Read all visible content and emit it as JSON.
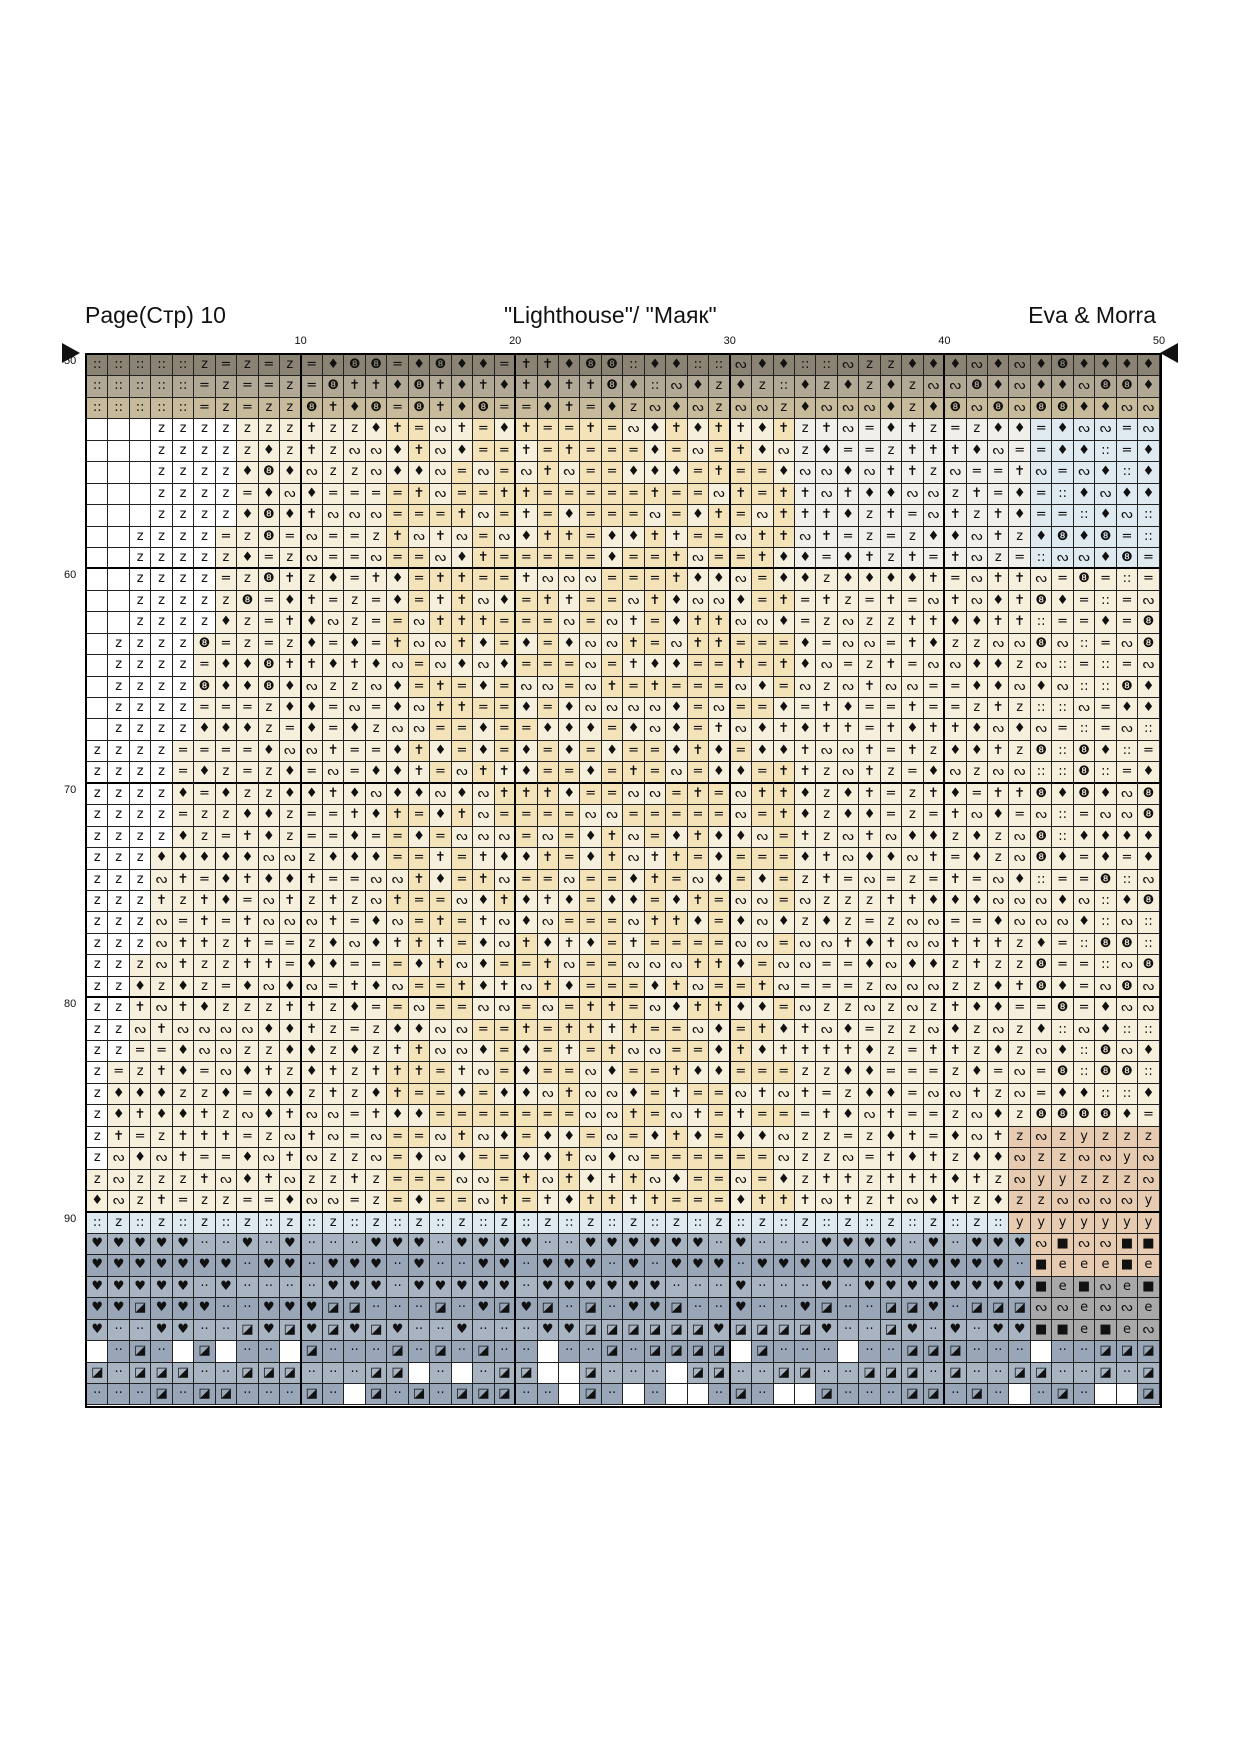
{
  "header": {
    "left": "Page(Стр) 10",
    "center": "\"Lighthouse\"/ \"Маяк\"",
    "right": "Eva & Morra"
  },
  "grid": {
    "columns": 50,
    "rows": 49,
    "start_row": 50,
    "col_labels": [
      "10",
      "20",
      "30",
      "40",
      "50"
    ],
    "row_labels": [
      "50",
      "60",
      "70",
      "80",
      "90"
    ]
  },
  "palette": {
    "taupe": "#8a8374",
    "greige": "#b1a996",
    "tan": "#c7bb9c",
    "cream": "#f4e3b8",
    "lightcream": "#f6efdc",
    "pale": "#f0efe9",
    "white": "#ffffff",
    "lightblue": "#dfe9f0",
    "peach": "#e6cbb1",
    "slate": "#a9b4c3",
    "slatedark": "#98a6b8",
    "grey": "#a9a9a9"
  },
  "symbols": {
    "equals": "=",
    "z": "z",
    "dots": "::",
    "diamond": "♦",
    "cross": "✝",
    "swirl": "ᔓ",
    "coin": "❽",
    "heart": "♥",
    "square": "◪",
    "y": "y",
    "e": "e",
    "block": "■",
    "dash": "··"
  }
}
